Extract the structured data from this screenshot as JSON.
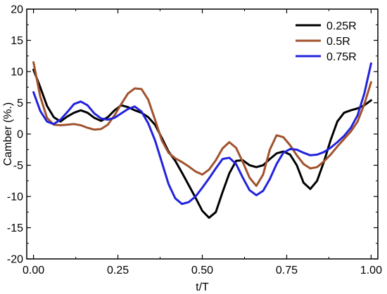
{
  "chart_data": {
    "type": "line",
    "title": "",
    "xlabel": "t/T",
    "ylabel": "Camber (%.)",
    "xlim": [
      -0.02,
      1.02
    ],
    "ylim": [
      -20,
      20
    ],
    "xticks": [
      0.0,
      0.25,
      0.5,
      0.75,
      1.0
    ],
    "xtick_labels": [
      "0.00",
      "0.25",
      "0.50",
      "0.75",
      "1.00"
    ],
    "yticks": [
      -20,
      -15,
      -10,
      -5,
      0,
      5,
      10,
      15,
      20
    ],
    "ytick_labels": [
      "-20",
      "-15",
      "-10",
      "-5",
      "0",
      "5",
      "10",
      "15",
      "20"
    ],
    "grid": false,
    "legend_position": "top-right",
    "series": [
      {
        "name": "0.25R",
        "color": "#000000",
        "x": [
          0.0,
          0.02,
          0.04,
          0.06,
          0.08,
          0.1,
          0.12,
          0.14,
          0.16,
          0.18,
          0.2,
          0.22,
          0.24,
          0.26,
          0.28,
          0.3,
          0.32,
          0.34,
          0.36,
          0.38,
          0.4,
          0.42,
          0.44,
          0.46,
          0.48,
          0.5,
          0.52,
          0.54,
          0.56,
          0.58,
          0.6,
          0.62,
          0.64,
          0.66,
          0.68,
          0.7,
          0.72,
          0.74,
          0.76,
          0.78,
          0.8,
          0.82,
          0.84,
          0.86,
          0.88,
          0.9,
          0.92,
          0.94,
          0.96,
          0.98,
          1.0
        ],
        "y": [
          10.3,
          7.5,
          4.5,
          2.7,
          2.0,
          2.8,
          3.4,
          3.8,
          3.4,
          2.6,
          2.1,
          2.7,
          3.8,
          4.6,
          4.3,
          3.8,
          3.4,
          2.7,
          1.5,
          -0.6,
          -2.8,
          -4.3,
          -6.2,
          -8.2,
          -10.2,
          -12.3,
          -13.4,
          -12.5,
          -9.3,
          -6.3,
          -4.3,
          -4.2,
          -5.0,
          -5.3,
          -5.0,
          -4.0,
          -3.1,
          -2.8,
          -3.3,
          -5.0,
          -7.8,
          -8.8,
          -7.5,
          -4.5,
          -1.0,
          2.0,
          3.4,
          3.8,
          4.1,
          4.6,
          5.4
        ]
      },
      {
        "name": "0.5R",
        "color": "#a0522d",
        "x": [
          0.0,
          0.02,
          0.04,
          0.06,
          0.08,
          0.1,
          0.12,
          0.14,
          0.16,
          0.18,
          0.2,
          0.22,
          0.24,
          0.26,
          0.28,
          0.3,
          0.32,
          0.34,
          0.36,
          0.38,
          0.4,
          0.42,
          0.44,
          0.46,
          0.48,
          0.5,
          0.52,
          0.54,
          0.56,
          0.58,
          0.6,
          0.62,
          0.64,
          0.66,
          0.68,
          0.7,
          0.72,
          0.74,
          0.76,
          0.78,
          0.8,
          0.82,
          0.84,
          0.86,
          0.88,
          0.9,
          0.92,
          0.94,
          0.96,
          0.98,
          1.0
        ],
        "y": [
          11.5,
          6.0,
          2.6,
          1.5,
          1.4,
          1.5,
          1.6,
          1.4,
          1.0,
          0.7,
          0.8,
          1.5,
          3.0,
          4.8,
          6.5,
          7.3,
          7.2,
          5.5,
          2.3,
          -1.0,
          -3.0,
          -3.9,
          -4.5,
          -5.2,
          -6.0,
          -6.5,
          -5.7,
          -4.2,
          -2.3,
          -1.3,
          -2.2,
          -4.5,
          -7.0,
          -8.3,
          -6.5,
          -2.5,
          -0.2,
          -0.5,
          -1.8,
          -3.4,
          -4.8,
          -5.5,
          -5.3,
          -4.4,
          -3.3,
          -2.0,
          -0.8,
          0.4,
          2.0,
          4.8,
          8.3
        ]
      },
      {
        "name": "0.75R",
        "color": "#2222dd",
        "x": [
          0.0,
          0.02,
          0.04,
          0.06,
          0.08,
          0.1,
          0.12,
          0.14,
          0.16,
          0.18,
          0.2,
          0.22,
          0.24,
          0.26,
          0.28,
          0.3,
          0.32,
          0.34,
          0.36,
          0.38,
          0.4,
          0.42,
          0.44,
          0.46,
          0.48,
          0.5,
          0.52,
          0.54,
          0.56,
          0.58,
          0.6,
          0.62,
          0.64,
          0.66,
          0.68,
          0.7,
          0.72,
          0.74,
          0.76,
          0.78,
          0.8,
          0.82,
          0.84,
          0.86,
          0.88,
          0.9,
          0.92,
          0.94,
          0.96,
          0.98,
          1.0
        ],
        "y": [
          6.7,
          3.7,
          2.0,
          1.6,
          2.3,
          3.5,
          4.8,
          5.2,
          4.6,
          3.3,
          2.5,
          2.3,
          2.6,
          3.3,
          4.0,
          4.4,
          3.6,
          1.7,
          -1.0,
          -4.5,
          -8.0,
          -10.3,
          -11.2,
          -10.9,
          -10.0,
          -8.6,
          -7.1,
          -5.5,
          -4.0,
          -3.8,
          -4.8,
          -7.0,
          -9.0,
          -9.8,
          -9.1,
          -7.2,
          -4.8,
          -3.0,
          -2.4,
          -2.5,
          -3.0,
          -3.4,
          -3.3,
          -2.9,
          -2.2,
          -1.3,
          -0.3,
          1.0,
          3.0,
          6.5,
          11.3
        ]
      }
    ]
  }
}
